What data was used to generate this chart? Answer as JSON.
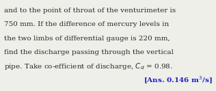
{
  "lines": [
    "and to the point of throat of the venturimeter is",
    "750 mm. If the difference of mercury levels in",
    "the two limbs of differential gauge is 220 mm,",
    "find the discharge passing through the vertical",
    "pipe. Take co-efficient of discharge, $C_d$ = 0.98."
  ],
  "answer_text": "[Ans. 0.146 m$^3$/s]",
  "background_color": "#efefea",
  "text_color": "#282828",
  "answer_color": "#1a1acc",
  "font_size": 7.5,
  "ans_font_size": 7.5,
  "fig_width": 3.16,
  "fig_height": 1.33,
  "dpi": 100
}
